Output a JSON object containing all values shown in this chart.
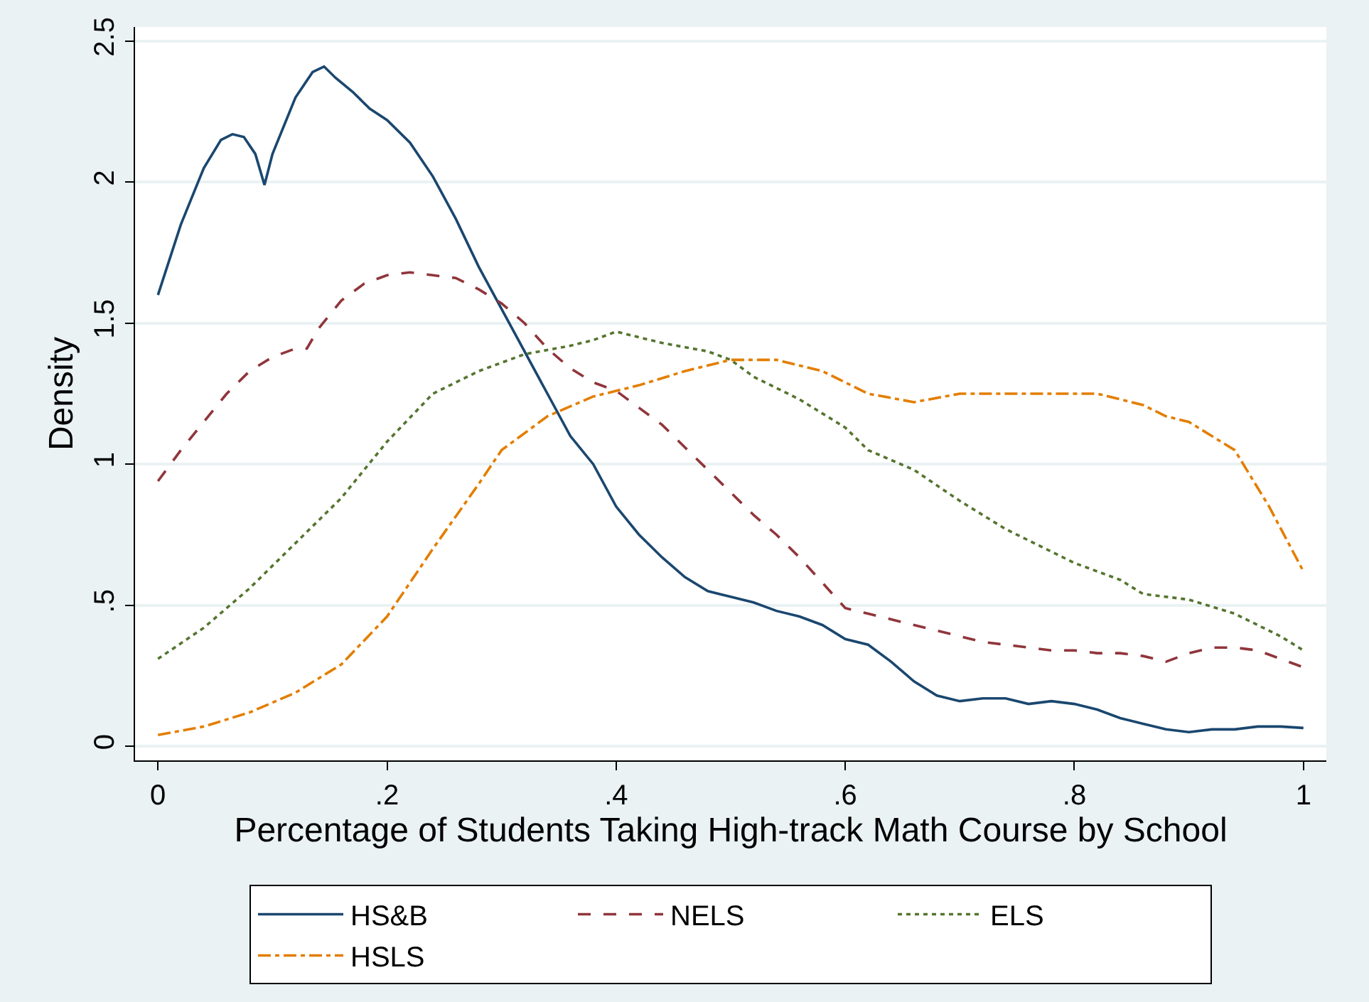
{
  "chart_data": {
    "type": "line",
    "xlabel": "Percentage of Students Taking High-track Math Course by School",
    "ylabel": "Density",
    "xlim": [
      -0.02,
      1.02
    ],
    "xticks": [
      0,
      {
        "value": 0.2,
        "label": ".2"
      },
      {
        "value": 0.4,
        "label": ".4"
      },
      {
        "value": 0.6,
        "label": ".6"
      },
      {
        "value": 0.8,
        "label": ".8"
      },
      1
    ],
    "ylim": [
      -0.05,
      2.55
    ],
    "yticks": [
      0,
      {
        "value": 0.5,
        "label": ".5"
      },
      1,
      1.5,
      2,
      2.5
    ],
    "grid": "y",
    "legend": "bottom",
    "series": [
      {
        "name": "HS&B",
        "color": "#1a476f",
        "line_style": "solid",
        "x": [
          0,
          0.02,
          0.04,
          0.055,
          0.065,
          0.075,
          0.085,
          0.093,
          0.1,
          0.12,
          0.135,
          0.145,
          0.155,
          0.17,
          0.185,
          0.2,
          0.22,
          0.24,
          0.26,
          0.28,
          0.3,
          0.32,
          0.34,
          0.36,
          0.38,
          0.4,
          0.42,
          0.44,
          0.46,
          0.48,
          0.5,
          0.52,
          0.54,
          0.56,
          0.58,
          0.6,
          0.62,
          0.64,
          0.66,
          0.68,
          0.7,
          0.72,
          0.74,
          0.76,
          0.78,
          0.8,
          0.82,
          0.84,
          0.86,
          0.88,
          0.9,
          0.92,
          0.94,
          0.96,
          0.98,
          1.0
        ],
        "values": [
          1.6,
          1.85,
          2.05,
          2.15,
          2.17,
          2.16,
          2.1,
          1.99,
          2.1,
          2.3,
          2.39,
          2.41,
          2.37,
          2.32,
          2.26,
          2.22,
          2.14,
          2.02,
          1.87,
          1.7,
          1.55,
          1.4,
          1.25,
          1.1,
          1.0,
          0.85,
          0.75,
          0.67,
          0.6,
          0.55,
          0.53,
          0.51,
          0.48,
          0.46,
          0.43,
          0.38,
          0.36,
          0.3,
          0.23,
          0.18,
          0.16,
          0.17,
          0.17,
          0.15,
          0.16,
          0.15,
          0.13,
          0.1,
          0.08,
          0.06,
          0.05,
          0.06,
          0.06,
          0.07,
          0.07,
          0.065
        ]
      },
      {
        "name": "NELS",
        "color": "#90353b",
        "line_style": "dashed",
        "x": [
          0,
          0.02,
          0.04,
          0.06,
          0.08,
          0.1,
          0.12,
          0.13,
          0.14,
          0.16,
          0.18,
          0.2,
          0.22,
          0.24,
          0.26,
          0.28,
          0.3,
          0.32,
          0.34,
          0.36,
          0.38,
          0.4,
          0.42,
          0.44,
          0.46,
          0.48,
          0.5,
          0.52,
          0.54,
          0.56,
          0.58,
          0.6,
          0.62,
          0.64,
          0.66,
          0.68,
          0.7,
          0.72,
          0.74,
          0.76,
          0.78,
          0.8,
          0.82,
          0.84,
          0.86,
          0.88,
          0.9,
          0.92,
          0.94,
          0.96,
          0.98,
          1.0
        ],
        "values": [
          0.94,
          1.05,
          1.15,
          1.25,
          1.33,
          1.38,
          1.41,
          1.41,
          1.48,
          1.58,
          1.64,
          1.67,
          1.68,
          1.67,
          1.66,
          1.62,
          1.57,
          1.5,
          1.41,
          1.34,
          1.29,
          1.26,
          1.2,
          1.14,
          1.06,
          0.98,
          0.9,
          0.82,
          0.75,
          0.67,
          0.58,
          0.49,
          0.47,
          0.45,
          0.43,
          0.41,
          0.39,
          0.37,
          0.36,
          0.35,
          0.34,
          0.34,
          0.33,
          0.33,
          0.32,
          0.3,
          0.33,
          0.35,
          0.35,
          0.34,
          0.31,
          0.28
        ]
      },
      {
        "name": "ELS",
        "color": "#55752f",
        "line_style": "dotted",
        "x": [
          0,
          0.04,
          0.08,
          0.12,
          0.16,
          0.2,
          0.24,
          0.28,
          0.32,
          0.36,
          0.38,
          0.4,
          0.42,
          0.44,
          0.48,
          0.5,
          0.52,
          0.56,
          0.6,
          0.62,
          0.66,
          0.7,
          0.74,
          0.78,
          0.8,
          0.84,
          0.86,
          0.9,
          0.94,
          0.98,
          1.0
        ],
        "values": [
          0.31,
          0.42,
          0.56,
          0.72,
          0.88,
          1.08,
          1.25,
          1.33,
          1.39,
          1.42,
          1.44,
          1.47,
          1.45,
          1.43,
          1.4,
          1.37,
          1.31,
          1.23,
          1.13,
          1.05,
          0.98,
          0.87,
          0.77,
          0.69,
          0.65,
          0.59,
          0.54,
          0.52,
          0.47,
          0.39,
          0.34
        ]
      },
      {
        "name": "HSLS",
        "color": "#e37e00",
        "line_style": "dashdot",
        "x": [
          0,
          0.04,
          0.08,
          0.12,
          0.16,
          0.2,
          0.24,
          0.28,
          0.3,
          0.34,
          0.38,
          0.42,
          0.46,
          0.5,
          0.54,
          0.58,
          0.62,
          0.66,
          0.7,
          0.74,
          0.78,
          0.82,
          0.86,
          0.88,
          0.9,
          0.94,
          0.97,
          1.0
        ],
        "values": [
          0.04,
          0.07,
          0.12,
          0.19,
          0.29,
          0.46,
          0.7,
          0.93,
          1.05,
          1.17,
          1.24,
          1.28,
          1.33,
          1.37,
          1.37,
          1.33,
          1.25,
          1.22,
          1.25,
          1.25,
          1.25,
          1.25,
          1.21,
          1.17,
          1.15,
          1.05,
          0.85,
          0.62
        ]
      }
    ]
  }
}
